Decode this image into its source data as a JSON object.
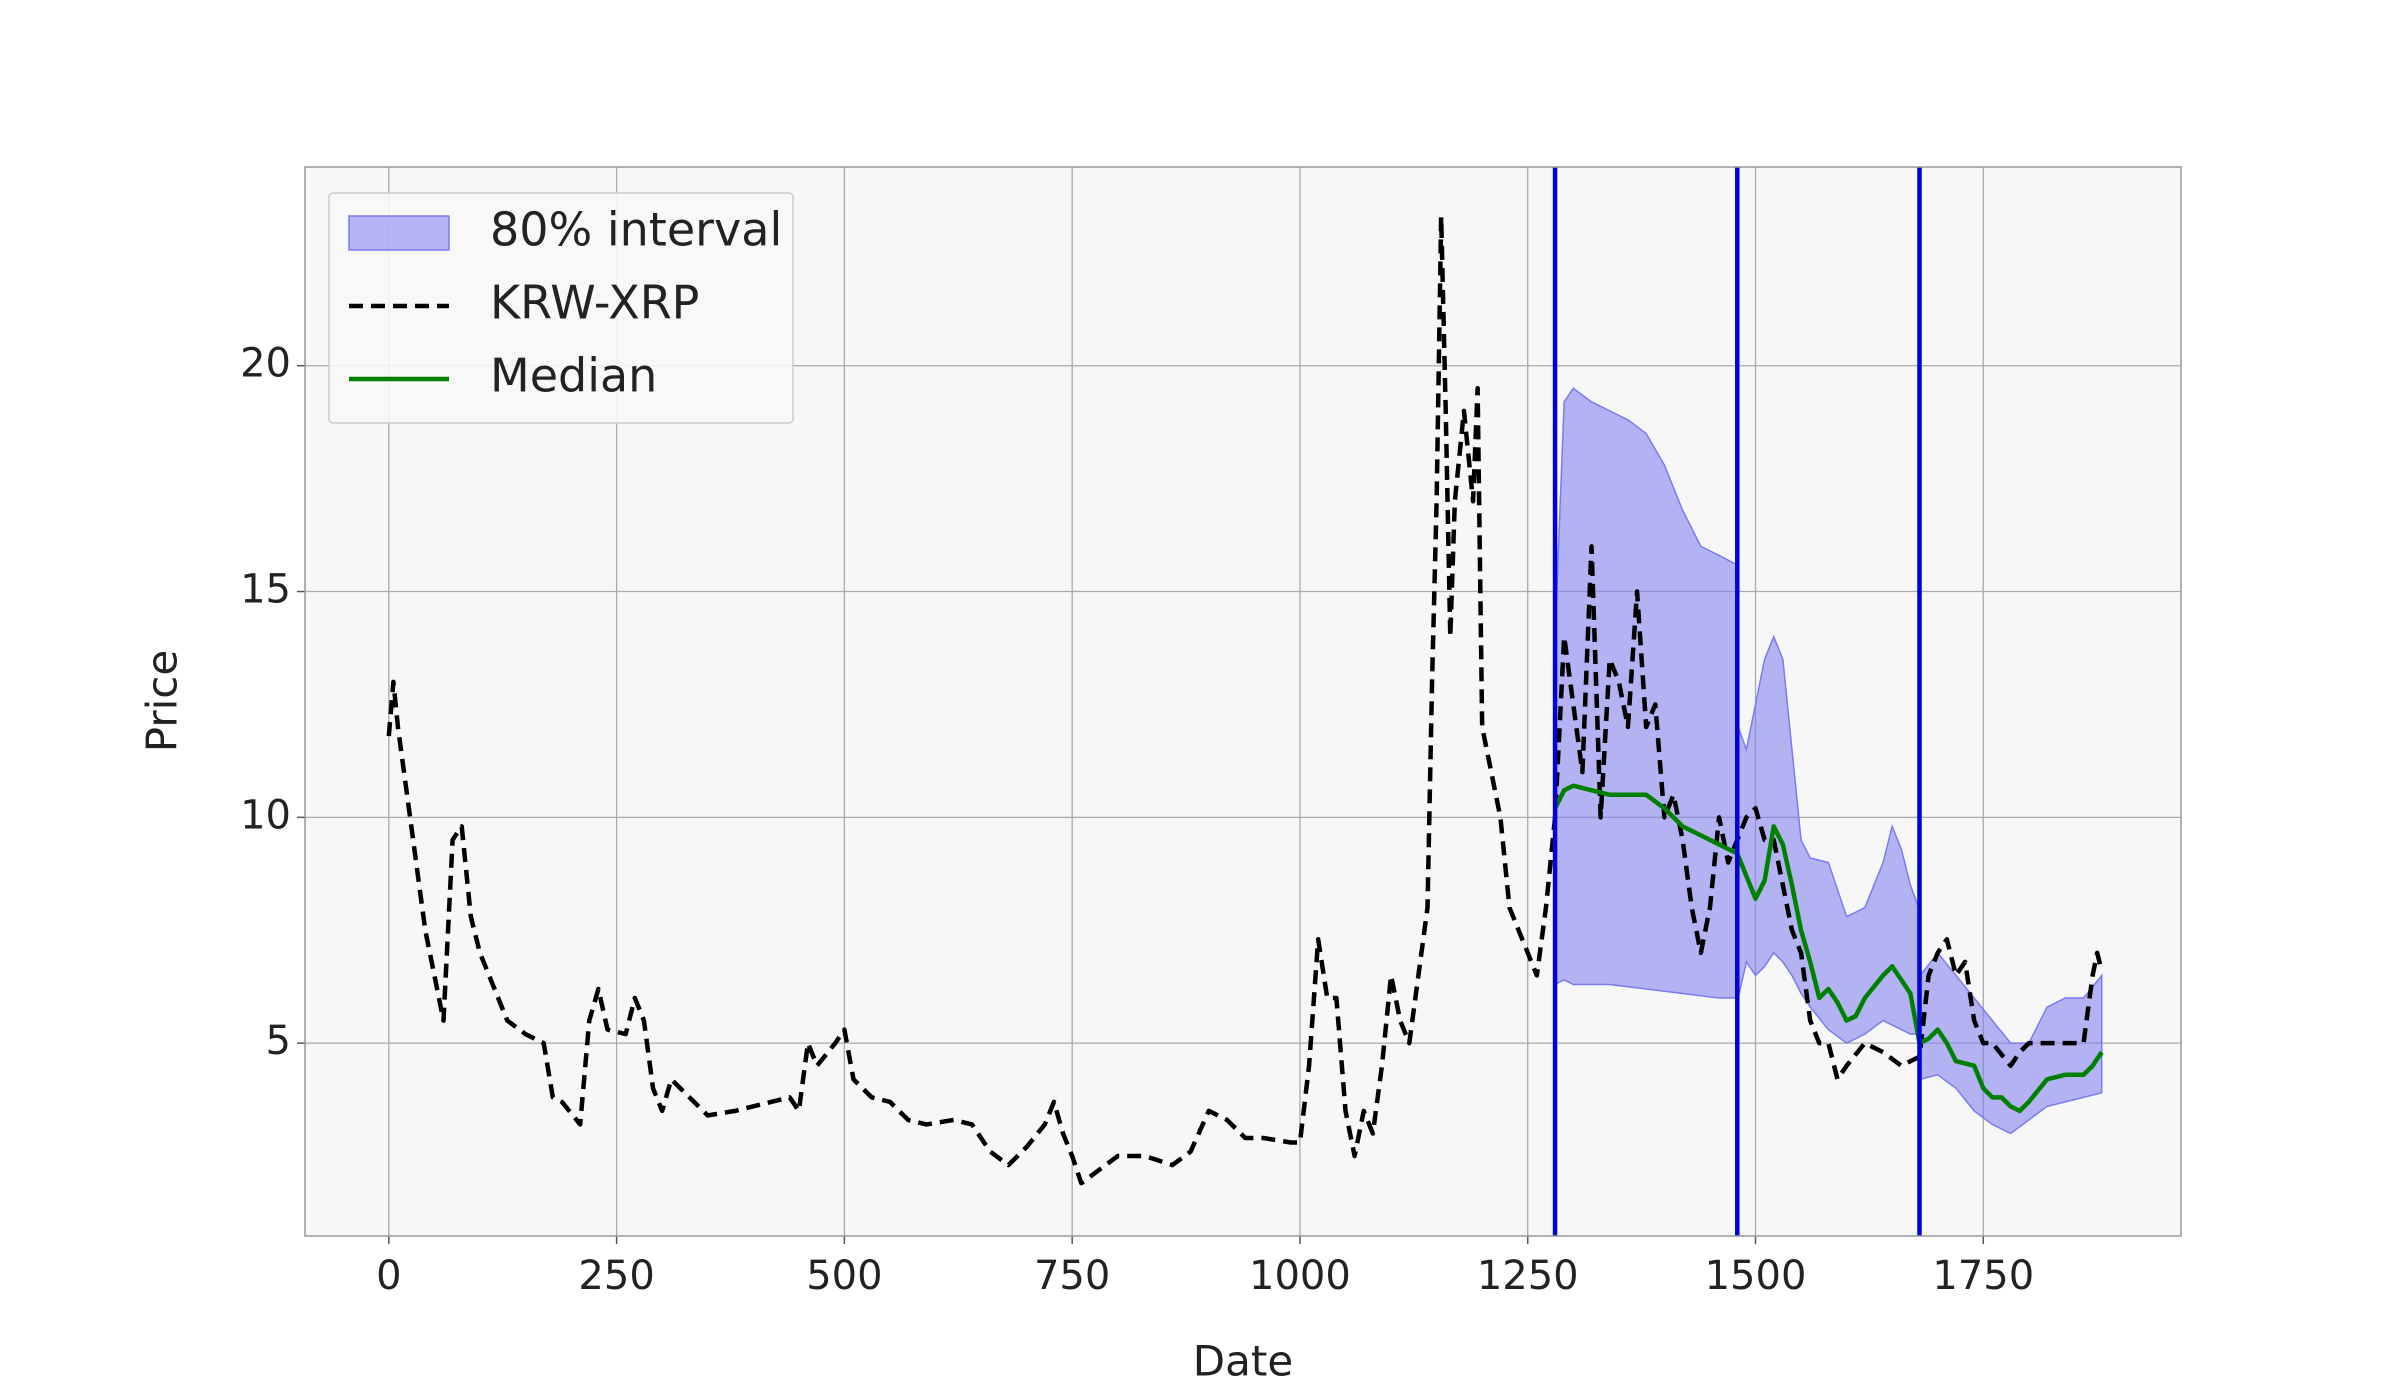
{
  "chart_data": {
    "type": "line",
    "xlabel": "Date",
    "ylabel": "Price",
    "xlim": [
      -92,
      1967
    ],
    "ylim": [
      0.73,
      24.4
    ],
    "xticks": [
      0,
      250,
      500,
      750,
      1000,
      1250,
      1500,
      1750
    ],
    "yticks": [
      5,
      10,
      15,
      20
    ],
    "grid": true,
    "legend": "upper-left",
    "vlines": [
      1280,
      1480,
      1680
    ],
    "vline_color": "#0000dd",
    "band": {
      "name": "80% interval",
      "color": "#7b7bf0",
      "x": [
        1280,
        1290,
        1300,
        1320,
        1340,
        1360,
        1380,
        1400,
        1420,
        1440,
        1460,
        1479,
        null,
        1481,
        1490,
        1500,
        1510,
        1520,
        1530,
        1540,
        1550,
        1560,
        1580,
        1600,
        1620,
        1640,
        1650,
        1660,
        1670,
        1679,
        null,
        1681,
        1700,
        1720,
        1740,
        1760,
        1780,
        1800,
        1820,
        1840,
        1860,
        1880
      ],
      "upper": [
        14,
        19.2,
        19.5,
        19.2,
        19,
        18.8,
        18.5,
        17.8,
        16.8,
        16,
        15.8,
        15.6,
        null,
        12,
        11.5,
        12.5,
        13.5,
        14,
        13.5,
        11.5,
        9.5,
        9.1,
        9,
        7.8,
        8,
        9,
        9.8,
        9.3,
        8.5,
        8,
        null,
        6.5,
        7,
        6.5,
        6,
        5.5,
        5,
        5,
        5.8,
        6,
        6,
        6.5
      ],
      "lower": [
        6.3,
        6.4,
        6.3,
        6.3,
        6.3,
        6.25,
        6.2,
        6.15,
        6.1,
        6.05,
        6,
        6,
        null,
        6,
        6.8,
        6.5,
        6.7,
        7,
        6.8,
        6.5,
        6.1,
        5.8,
        5.3,
        5,
        5.2,
        5.5,
        5.4,
        5.3,
        5.2,
        5.2,
        null,
        4.2,
        4.3,
        4,
        3.5,
        3.2,
        3,
        3.3,
        3.6,
        3.7,
        3.8,
        3.9
      ]
    },
    "series": [
      {
        "name": "KRW-XRP",
        "color": "#000000",
        "dashed": true,
        "x": [
          0,
          5,
          10,
          20,
          30,
          40,
          50,
          60,
          70,
          80,
          90,
          100,
          110,
          120,
          130,
          150,
          170,
          180,
          190,
          210,
          220,
          230,
          240,
          260,
          270,
          280,
          290,
          300,
          310,
          330,
          350,
          380,
          420,
          440,
          450,
          460,
          470,
          490,
          500,
          510,
          530,
          550,
          570,
          590,
          620,
          640,
          660,
          680,
          700,
          720,
          730,
          740,
          750,
          760,
          780,
          800,
          830,
          860,
          880,
          900,
          920,
          940,
          960,
          990,
          1000,
          1010,
          1020,
          1030,
          1040,
          1050,
          1060,
          1070,
          1080,
          1090,
          1100,
          1110,
          1120,
          1130,
          1140,
          1145,
          1150,
          1155,
          1160,
          1165,
          1170,
          1180,
          1190,
          1195,
          1200,
          1210,
          1220,
          1230,
          1240,
          1250,
          1260,
          1270,
          1280,
          1290,
          1300,
          1310,
          1320,
          1330,
          1340,
          1350,
          1360,
          1370,
          1380,
          1390,
          1400,
          1410,
          1420,
          1430,
          1440,
          1450,
          1460,
          1470,
          1480,
          1490,
          1500,
          1510,
          1520,
          1530,
          1540,
          1550,
          1560,
          1570,
          1580,
          1590,
          1600,
          1620,
          1640,
          1660,
          1680,
          1690,
          1700,
          1710,
          1720,
          1730,
          1740,
          1750,
          1760,
          1780,
          1790,
          1800,
          1820,
          1840,
          1860,
          1870,
          1875,
          1880
        ],
        "values": [
          11.8,
          13,
          12,
          10.5,
          9,
          7.5,
          6.5,
          5.5,
          9.5,
          9.8,
          7.8,
          7,
          6.5,
          6,
          5.5,
          5.2,
          5,
          3.8,
          3.7,
          3.2,
          5.5,
          6.2,
          5.3,
          5.2,
          6,
          5.5,
          4,
          3.5,
          4.2,
          3.8,
          3.4,
          3.5,
          3.7,
          3.8,
          3.5,
          5,
          4.5,
          5,
          5.3,
          4.2,
          3.8,
          3.7,
          3.3,
          3.2,
          3.3,
          3.2,
          2.6,
          2.3,
          2.7,
          3.2,
          3.7,
          3,
          2.5,
          1.9,
          2.2,
          2.5,
          2.5,
          2.3,
          2.6,
          3.5,
          3.3,
          2.9,
          2.9,
          2.8,
          2.8,
          4.5,
          7.3,
          6,
          6,
          3.5,
          2.5,
          3.5,
          3,
          4.5,
          6.5,
          5.5,
          5,
          6.5,
          8,
          13,
          17,
          23.3,
          19,
          14,
          17,
          19,
          17,
          19.5,
          12,
          11,
          10,
          8,
          7.5,
          7,
          6.5,
          8,
          10,
          14,
          12.5,
          11,
          16,
          10,
          13.5,
          13,
          12,
          15,
          12,
          12.5,
          10,
          10.5,
          9.5,
          8,
          7,
          8,
          10,
          9,
          9.5,
          10,
          10.2,
          9.5,
          9.5,
          8.5,
          7.5,
          7,
          5.5,
          5,
          5,
          4.2,
          4.5,
          5,
          4.8,
          4.5,
          4.7,
          6.5,
          7,
          7.3,
          6.5,
          6.8,
          5.5,
          5,
          5,
          4.5,
          4.8,
          5,
          5,
          5,
          5,
          6.5,
          7,
          6.6
        ]
      },
      {
        "name": "Median",
        "color": "#008000",
        "dashed": false,
        "x": [
          1280,
          1290,
          1300,
          1340,
          1380,
          1400,
          1420,
          1440,
          1460,
          1470,
          1480,
          1490,
          1500,
          1510,
          1520,
          1530,
          1540,
          1550,
          1560,
          1570,
          1580,
          1590,
          1600,
          1610,
          1620,
          1640,
          1650,
          1660,
          1670,
          1680,
          1690,
          1700,
          1710,
          1720,
          1740,
          1750,
          1760,
          1770,
          1780,
          1790,
          1800,
          1820,
          1840,
          1860,
          1870,
          1880
        ],
        "values": [
          10.2,
          10.6,
          10.7,
          10.5,
          10.5,
          10.2,
          9.8,
          9.6,
          9.4,
          9.3,
          9.2,
          8.7,
          8.2,
          8.6,
          9.8,
          9.4,
          8.5,
          7.5,
          6.8,
          6,
          6.2,
          5.9,
          5.5,
          5.6,
          6,
          6.5,
          6.7,
          6.4,
          6.1,
          5,
          5.1,
          5.3,
          5,
          4.6,
          4.5,
          4,
          3.8,
          3.8,
          3.6,
          3.5,
          3.7,
          4.2,
          4.3,
          4.3,
          4.5,
          4.8
        ]
      }
    ]
  }
}
